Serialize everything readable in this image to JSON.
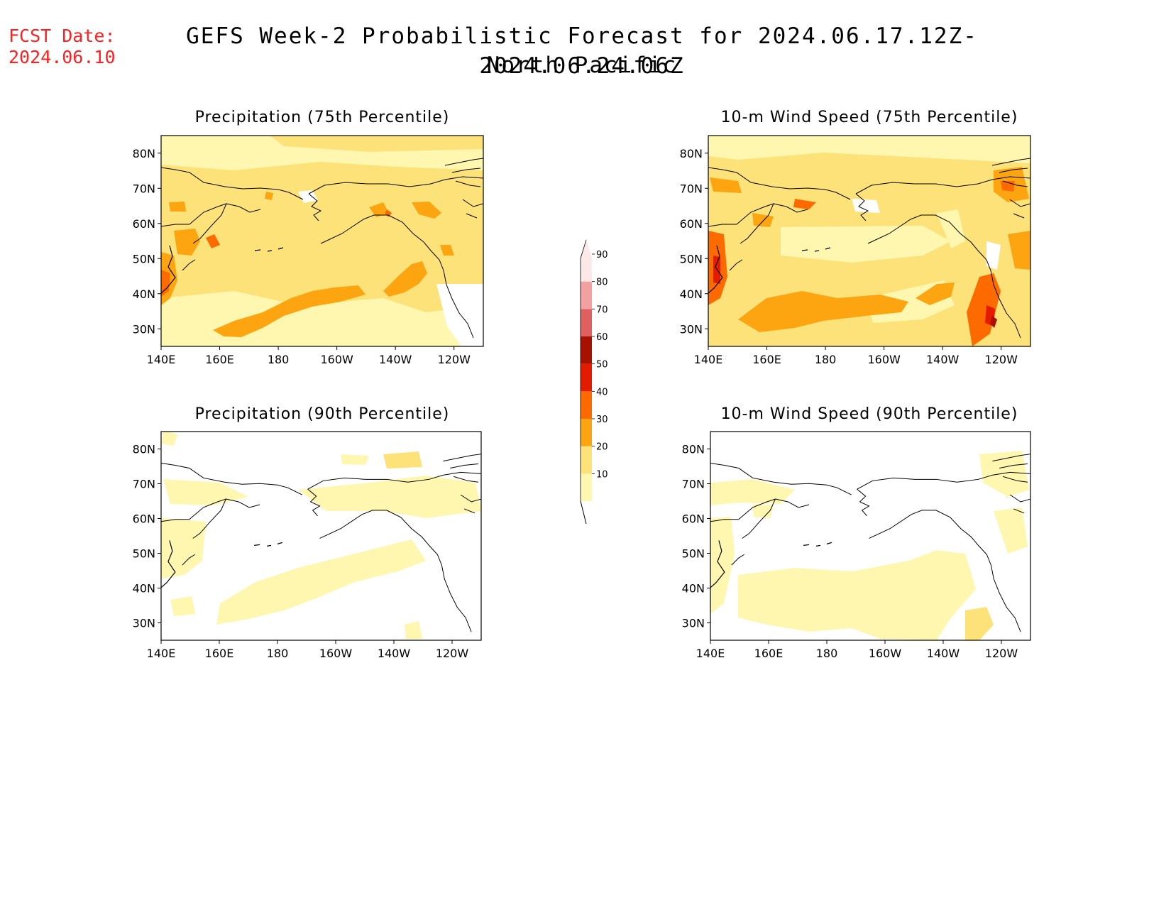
{
  "header": {
    "fcst_label": "FCST Date:",
    "fcst_date": "2024.06.10",
    "title": "GEFS Week-2 Probabilistic Forecast for 2024.06.17.12Z-2024.06.24.06Z",
    "subtitle": "North Pacific"
  },
  "panels": [
    {
      "id": "precip75",
      "title": "Precipitation (75th Percentile)"
    },
    {
      "id": "wind75",
      "title": "10-m Wind Speed (75th Percentile)"
    },
    {
      "id": "precip90",
      "title": "Precipitation (90th Percentile)"
    },
    {
      "id": "wind90",
      "title": "10-m Wind Speed (90th Percentile)"
    }
  ],
  "axes": {
    "lon_labels": [
      "140E",
      "160E",
      "180",
      "160W",
      "140W",
      "120W"
    ],
    "lat_labels": [
      "80N",
      "70N",
      "60N",
      "50N",
      "40N",
      "30N"
    ]
  },
  "colorbar": {
    "levels": [
      "10",
      "20",
      "30",
      "40",
      "50",
      "60",
      "70",
      "80",
      "90"
    ],
    "colors": [
      "#fff7b0",
      "#fde27a",
      "#fca510",
      "#fd6a00",
      "#e51b00",
      "#a81000",
      "#e06060",
      "#f2a0a0",
      "#fde8e8"
    ]
  }
}
